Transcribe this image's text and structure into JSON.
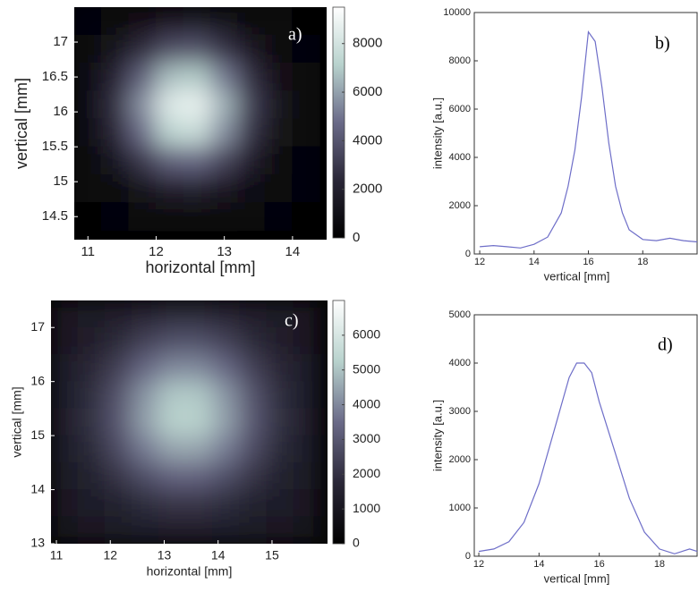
{
  "chart_data": [
    {
      "type": "heatmap",
      "annotation": "a)",
      "x_label": "horizontal [mm]",
      "y_label": "vertical [mm]",
      "x": [
        11.0,
        11.4,
        11.8,
        12.2,
        12.6,
        13.0,
        13.4,
        13.8,
        14.2
      ],
      "y": [
        17.3,
        16.9,
        16.5,
        16.1,
        15.7,
        15.3,
        14.9,
        14.5
      ],
      "z": [
        [
          300,
          600,
          1000,
          1500,
          1600,
          1200,
          700,
          400,
          200
        ],
        [
          500,
          1200,
          2500,
          3700,
          3900,
          2800,
          1500,
          600,
          300
        ],
        [
          800,
          2100,
          4400,
          6700,
          7000,
          5100,
          2600,
          1000,
          400
        ],
        [
          900,
          2600,
          5600,
          8400,
          8800,
          6400,
          3200,
          1200,
          400
        ],
        [
          800,
          2300,
          4800,
          7300,
          7700,
          5600,
          2800,
          1100,
          400
        ],
        [
          600,
          1400,
          3000,
          4400,
          4600,
          3400,
          1800,
          700,
          300
        ],
        [
          400,
          700,
          1300,
          1900,
          2000,
          1500,
          800,
          400,
          300
        ],
        [
          200,
          300,
          500,
          700,
          700,
          600,
          400,
          300,
          200
        ]
      ],
      "xlim": [
        10.8,
        14.5
      ],
      "ylim": [
        14.17,
        17.5
      ],
      "xticks": [
        11,
        12,
        13,
        14
      ],
      "yticks": [
        14.5,
        15,
        15.5,
        16,
        16.5,
        17
      ],
      "clim": [
        0,
        9500
      ],
      "cticks": [
        0,
        2000,
        4000,
        6000,
        8000
      ],
      "colormap": [
        "#000000",
        "#2a2737",
        "#6a6a88",
        "#b8d2cd",
        "#ffffff"
      ]
    },
    {
      "type": "line",
      "annotation": "b)",
      "x_label": "vertical [mm]",
      "y_label": "intensity [a.u.]",
      "x": [
        12,
        12.5,
        13,
        13.5,
        14,
        14.5,
        15,
        15.25,
        15.5,
        15.75,
        16,
        16.25,
        16.5,
        16.75,
        17,
        17.25,
        17.5,
        18,
        18.5,
        19,
        19.5,
        20
      ],
      "values": [
        300,
        350,
        300,
        250,
        400,
        700,
        1700,
        2800,
        4300,
        6500,
        9200,
        8800,
        6900,
        4600,
        2800,
        1700,
        1000,
        600,
        550,
        650,
        550,
        500
      ],
      "color": "#6e6ec8",
      "xlim": [
        11.8,
        20
      ],
      "ylim": [
        0,
        10000
      ],
      "xticks": [
        12,
        14,
        16,
        18
      ],
      "yticks": [
        0,
        2000,
        4000,
        6000,
        8000,
        10000
      ]
    },
    {
      "type": "heatmap",
      "annotation": "c)",
      "x_label": "horizontal [mm]",
      "y_label": "vertical [mm]",
      "x": [
        11.15,
        11.65,
        12.15,
        12.65,
        13.15,
        13.65,
        14.15,
        14.65,
        15.15,
        15.65
      ],
      "y": [
        17.25,
        16.75,
        16.25,
        15.75,
        15.25,
        14.75,
        14.25,
        13.75,
        13.25
      ],
      "z": [
        [
          1100,
          1200,
          1400,
          1600,
          1800,
          1800,
          1600,
          1400,
          1200,
          1100
        ],
        [
          1100,
          1400,
          1800,
          2400,
          2800,
          2800,
          2400,
          1800,
          1400,
          1100
        ],
        [
          1300,
          1700,
          2400,
          3400,
          4000,
          4000,
          3400,
          2400,
          1700,
          1300
        ],
        [
          1300,
          1900,
          2900,
          4200,
          5100,
          5100,
          4200,
          2900,
          1900,
          1300
        ],
        [
          1400,
          2000,
          3000,
          4400,
          5300,
          5300,
          4400,
          3000,
          2000,
          1400
        ],
        [
          1300,
          1800,
          2700,
          3800,
          4500,
          4500,
          3800,
          2700,
          1800,
          1300
        ],
        [
          1200,
          1500,
          2100,
          2800,
          3300,
          3300,
          2800,
          2100,
          1500,
          1200
        ],
        [
          1100,
          1300,
          1500,
          1900,
          2100,
          2100,
          1900,
          1500,
          1300,
          1100
        ],
        [
          1000,
          1100,
          1200,
          1300,
          1400,
          1400,
          1300,
          1200,
          1100,
          1000
        ]
      ],
      "xlim": [
        10.9,
        16.03
      ],
      "ylim": [
        13,
        17.5
      ],
      "xticks": [
        11,
        12,
        13,
        14,
        15
      ],
      "yticks": [
        13,
        14,
        15,
        16,
        17
      ],
      "clim": [
        0,
        7000
      ],
      "cticks": [
        0,
        1000,
        2000,
        3000,
        4000,
        5000,
        6000
      ],
      "colormap": [
        "#000000",
        "#2a2737",
        "#6a6a88",
        "#b8d2cd",
        "#ffffff"
      ]
    },
    {
      "type": "line",
      "annotation": "d)",
      "x_label": "vertical [mm]",
      "y_label": "intensity [a.u.]",
      "x": [
        12,
        12.5,
        13,
        13.5,
        14,
        14.5,
        15,
        15.25,
        15.5,
        15.75,
        16,
        16.5,
        17,
        17.5,
        18,
        18.5,
        19,
        19.25
      ],
      "values": [
        100,
        150,
        300,
        700,
        1500,
        2600,
        3700,
        4000,
        4000,
        3800,
        3200,
        2200,
        1200,
        500,
        150,
        50,
        150,
        100
      ],
      "color": "#6e6ec8",
      "xlim": [
        11.85,
        19.25
      ],
      "ylim": [
        0,
        5000
      ],
      "xticks": [
        12,
        14,
        16,
        18
      ],
      "yticks": [
        0,
        1000,
        2000,
        3000,
        4000,
        5000
      ]
    }
  ]
}
